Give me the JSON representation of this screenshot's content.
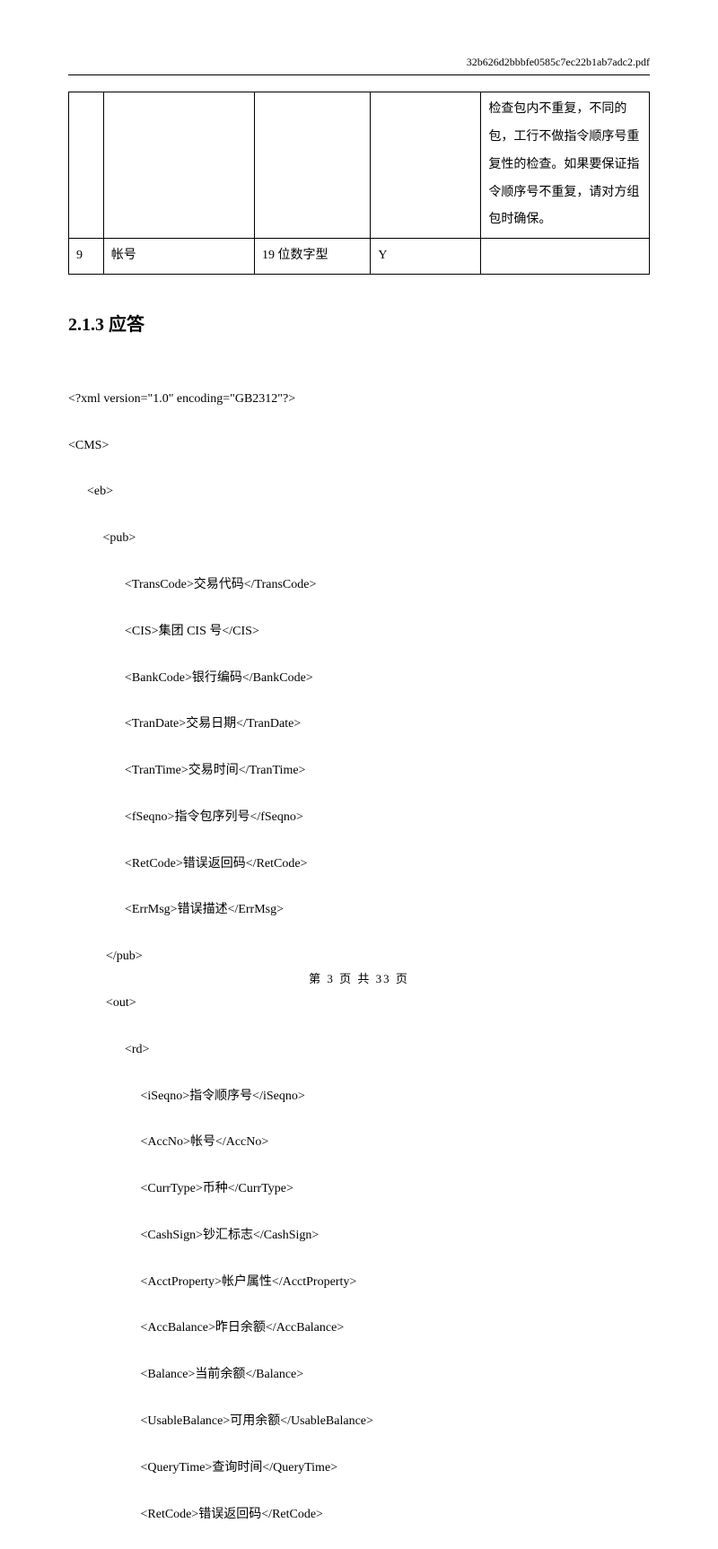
{
  "header": {
    "filename": "32b626d2bbbfe0585c7ec22b1ab7adc2.pdf"
  },
  "table": {
    "rows": [
      {
        "c0": "",
        "c1": "",
        "c2": "",
        "c3": "",
        "c4": "检查包内不重复，不同的包，工行不做指令顺序号重复性的检查。如果要保证指令顺序号不重复，请对方组包时确保。"
      },
      {
        "c0": "9",
        "c1": "帐号",
        "c2": "19 位数字型",
        "c3": "Y",
        "c4": ""
      }
    ]
  },
  "section": {
    "number": "2.1.3",
    "title": "应答"
  },
  "xml": {
    "line01": "<?xml version=\"1.0\" encoding=\"GB2312\"?>",
    "line02": "<CMS>",
    "line03": "      <eb>",
    "line04": "           <pub>",
    "line05": "                  <TransCode>交易代码</TransCode>",
    "line06": "                  <CIS>集团 CIS 号</CIS>",
    "line07": "                  <BankCode>银行编码</BankCode>",
    "line08": "                  <TranDate>交易日期</TranDate>",
    "line09": "                  <TranTime>交易时间</TranTime>",
    "line10": "                  <fSeqno>指令包序列号</fSeqno>",
    "line11": "                  <RetCode>错误返回码</RetCode>",
    "line12": "                  <ErrMsg>错误描述</ErrMsg>",
    "line13": "            </pub>",
    "line14": "            <out>",
    "line15": "                  <rd>",
    "line16": "                       <iSeqno>指令顺序号</iSeqno>",
    "line17": "                       <AccNo>帐号</AccNo>",
    "line18": "                       <CurrType>币种</CurrType>",
    "line19": "                       <CashSign>钞汇标志</CashSign>",
    "line20": "                       <AcctProperty>帐户属性</AcctProperty>",
    "line21": "                       <AccBalance>昨日余额</AccBalance>",
    "line22": "                       <Balance>当前余额</Balance>",
    "line23": "                       <UsableBalance>可用余额</UsableBalance>",
    "line24": "                       <QueryTime>查询时间</QueryTime>",
    "line25": "                       <RetCode>错误返回码</RetCode>"
  },
  "footer": {
    "text": "第 3 页 共 33 页"
  }
}
